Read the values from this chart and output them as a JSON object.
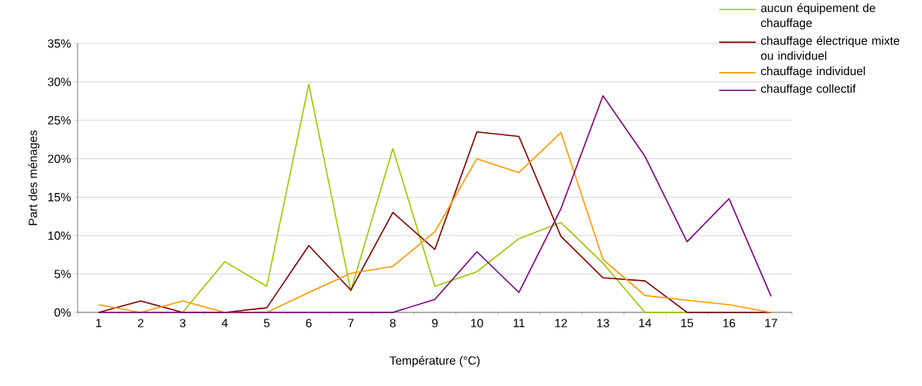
{
  "chart_data": {
    "type": "line",
    "xlabel": "Température (°C)",
    "ylabel": "Part des ménages",
    "categories": [
      "1",
      "2",
      "3",
      "4",
      "5",
      "6",
      "7",
      "8",
      "9",
      "10",
      "11",
      "12",
      "13",
      "14",
      "15",
      "16",
      "17"
    ],
    "series": [
      {
        "name": "aucun équipement de chauffage",
        "color": "#99cc00",
        "values": [
          null,
          null,
          0,
          6.6,
          3.4,
          29.7,
          2.8,
          21.3,
          3.4,
          5.3,
          9.6,
          11.7,
          6.4,
          0,
          0,
          null,
          null
        ]
      },
      {
        "name": "chauffage électrique mixte ou individuel",
        "color": "#800000",
        "values": [
          0,
          1.5,
          0,
          0,
          0.6,
          8.7,
          2.9,
          13,
          8.2,
          23.5,
          22.9,
          9.9,
          4.5,
          4.1,
          0,
          0,
          0
        ]
      },
      {
        "name": "chauffage individuel",
        "color": "#ff9900",
        "values": [
          1.0,
          0,
          1.5,
          0,
          0,
          2.6,
          5.1,
          6.0,
          10.5,
          20,
          18.2,
          23.4,
          6.9,
          2.2,
          1.6,
          1.0,
          0
        ]
      },
      {
        "name": "chauffage collectif",
        "color": "#800080",
        "values": [
          0,
          0,
          0,
          0,
          0,
          0,
          0,
          0,
          1.7,
          7.9,
          2.6,
          13.5,
          28.2,
          20.3,
          9.2,
          14.8,
          2.1
        ]
      }
    ],
    "ylim": [
      0,
      35
    ],
    "yticks": [
      {
        "value": 0,
        "label": "0%"
      },
      {
        "value": 5,
        "label": "5%"
      },
      {
        "value": 10,
        "label": "10%"
      },
      {
        "value": 15,
        "label": "15%"
      },
      {
        "value": 20,
        "label": "20%"
      },
      {
        "value": 25,
        "label": "25%"
      },
      {
        "value": 30,
        "label": "30%"
      },
      {
        "value": 35,
        "label": "35%"
      }
    ],
    "grid": "y",
    "legend": "top right",
    "marker": "none",
    "line_style": "solid"
  }
}
